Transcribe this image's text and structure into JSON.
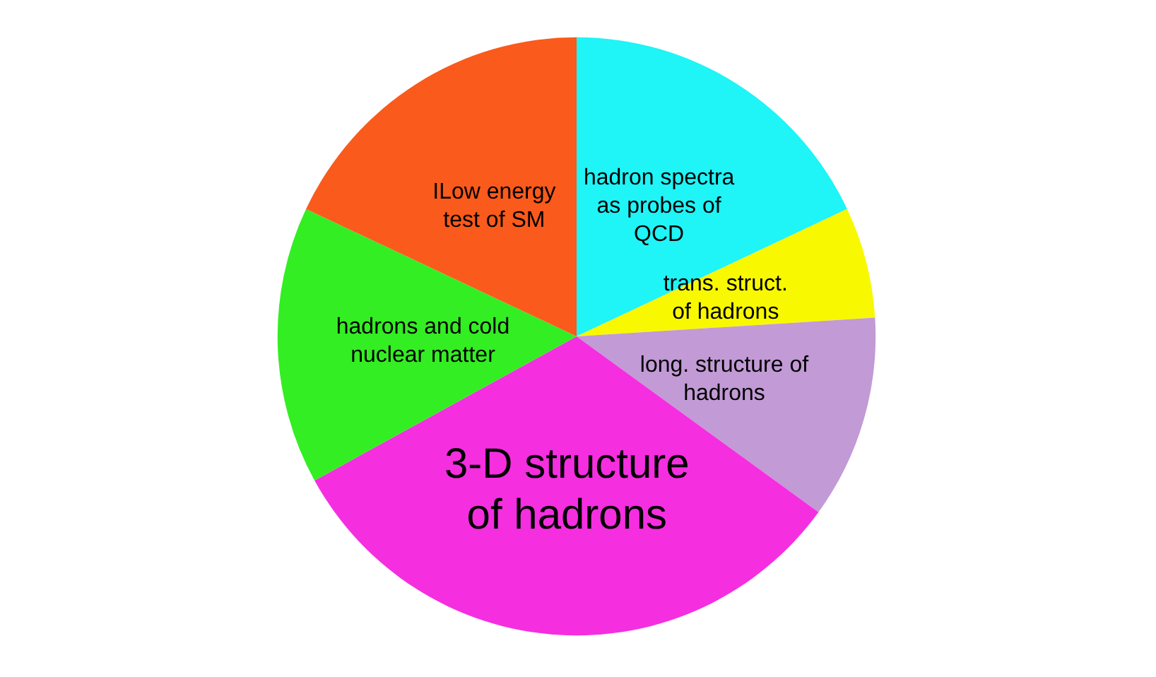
{
  "chart_data": {
    "type": "pie",
    "categories": [
      "hadron spectra\nas probes of\nQCD",
      "trans. struct.\nof hadrons",
      "long. structure of\nhadrons",
      "3-D structure\nof hadrons",
      "hadrons and cold\nnuclear matter",
      "ILow energy\ntest of SM"
    ],
    "values": [
      18,
      6,
      11,
      32,
      15,
      18
    ],
    "colors": [
      "#1ff4f7",
      "#f8f800",
      "#c29ad6",
      "#f52ee0",
      "#33ee22",
      "#fa5a1c"
    ],
    "legend": false
  }
}
